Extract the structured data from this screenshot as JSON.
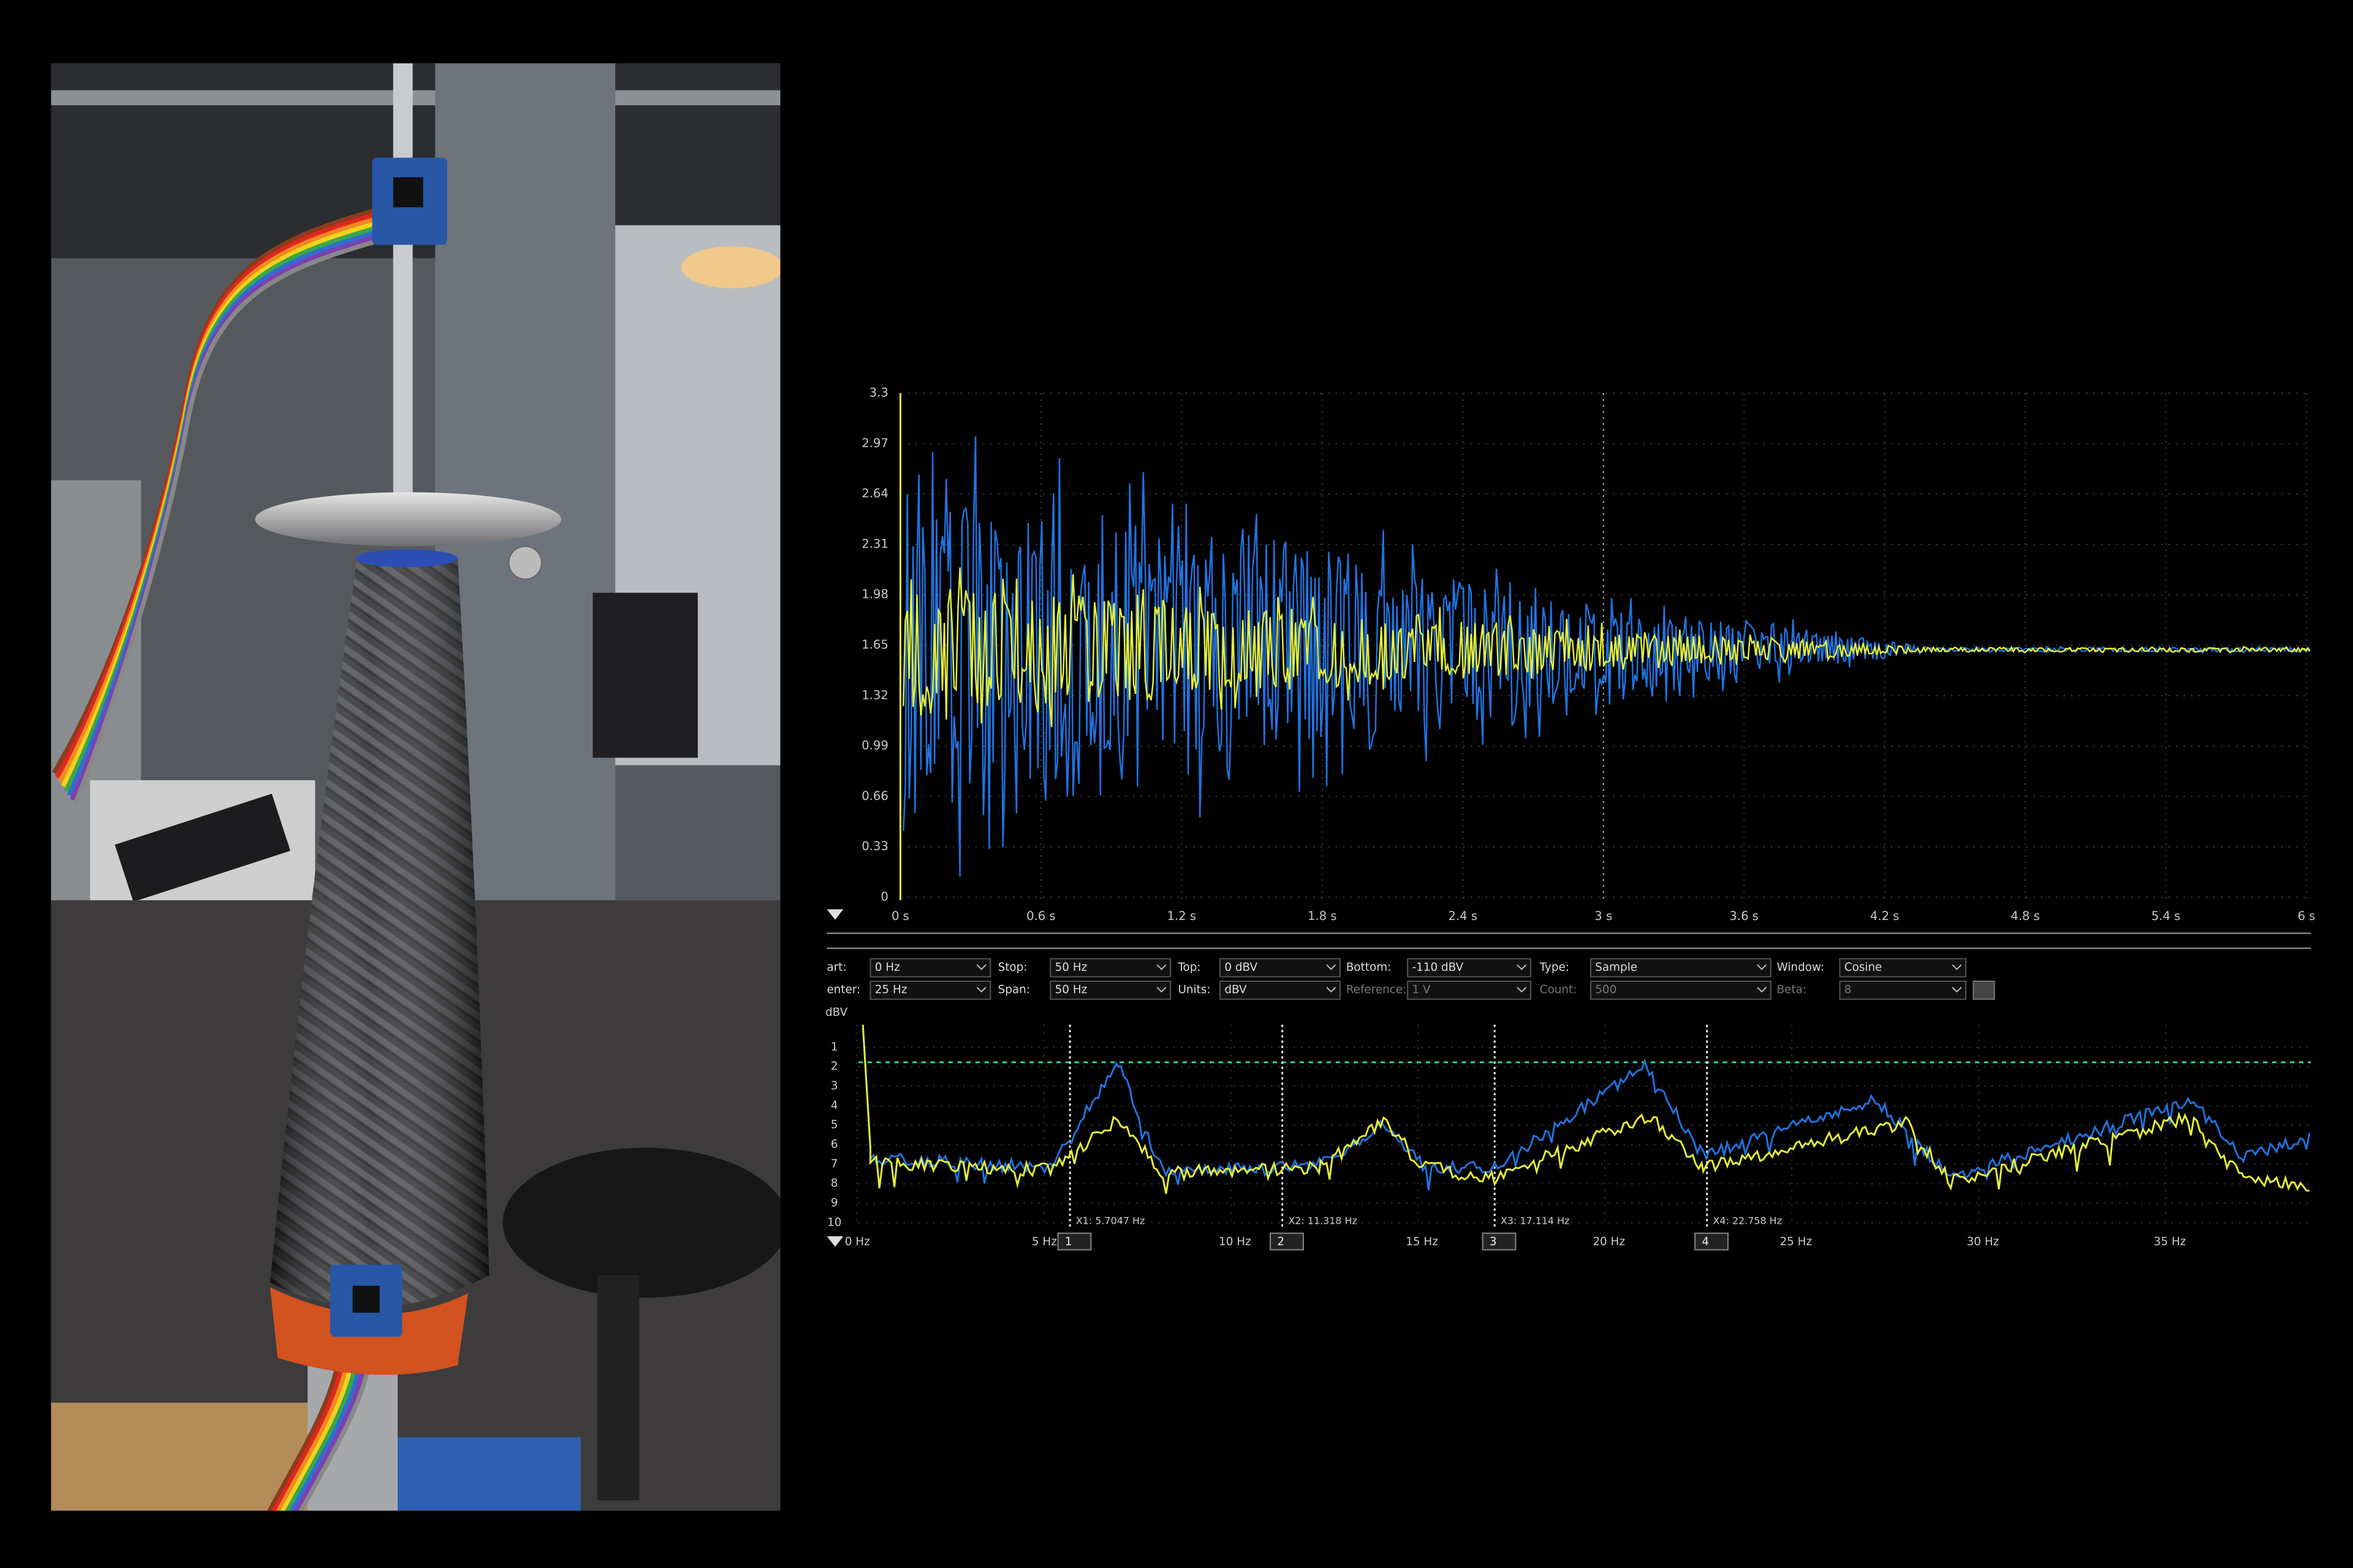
{
  "time_plot": {
    "y_labels": [
      "0",
      "0.33",
      "0.66",
      "0.99",
      "1.32",
      "1.65",
      "1.98",
      "2.31",
      "2.64",
      "2.97",
      "3.3"
    ],
    "x_labels": [
      "0 s",
      "0.6 s",
      "1.2 s",
      "1.8 s",
      "2.4 s",
      "3 s",
      "3.6 s",
      "4.2 s",
      "4.8 s",
      "5.4 s",
      "6 s"
    ]
  },
  "controls": {
    "row1": [
      {
        "label": "art:",
        "value": "0 Hz"
      },
      {
        "label": "Stop:",
        "value": "50 Hz"
      },
      {
        "label": "Top:",
        "value": "0 dBV"
      },
      {
        "label": "Bottom:",
        "value": "-110 dBV"
      },
      {
        "label": "Type:",
        "value": "Sample"
      },
      {
        "label": "Window:",
        "value": "Cosine"
      }
    ],
    "row2": [
      {
        "label": "enter:",
        "value": "25 Hz"
      },
      {
        "label": "Span:",
        "value": "50 Hz"
      },
      {
        "label": "Units:",
        "value": "dBV"
      },
      {
        "label": "Reference:",
        "value": "1 V"
      },
      {
        "label": "Count:",
        "value": "500"
      },
      {
        "label": "Beta:",
        "value": "8"
      }
    ]
  },
  "fft_plot": {
    "unit_label": "dBV",
    "y_labels": [
      "1",
      "2",
      "3",
      "4",
      "5",
      "6",
      "7",
      "8",
      "9",
      "10"
    ],
    "x_labels": [
      "0 Hz",
      "5 Hz",
      "10 Hz",
      "15 Hz",
      "20 Hz",
      "25 Hz",
      "30 Hz",
      "35 Hz"
    ],
    "cursors": [
      {
        "marker": "1",
        "label": "X1: 5.7047 Hz"
      },
      {
        "marker": "2",
        "label": "X2: 11.318 Hz"
      },
      {
        "marker": "3",
        "label": "X3: 17.114 Hz"
      },
      {
        "marker": "4",
        "label": "X4: 22.758 Hz"
      }
    ]
  }
}
